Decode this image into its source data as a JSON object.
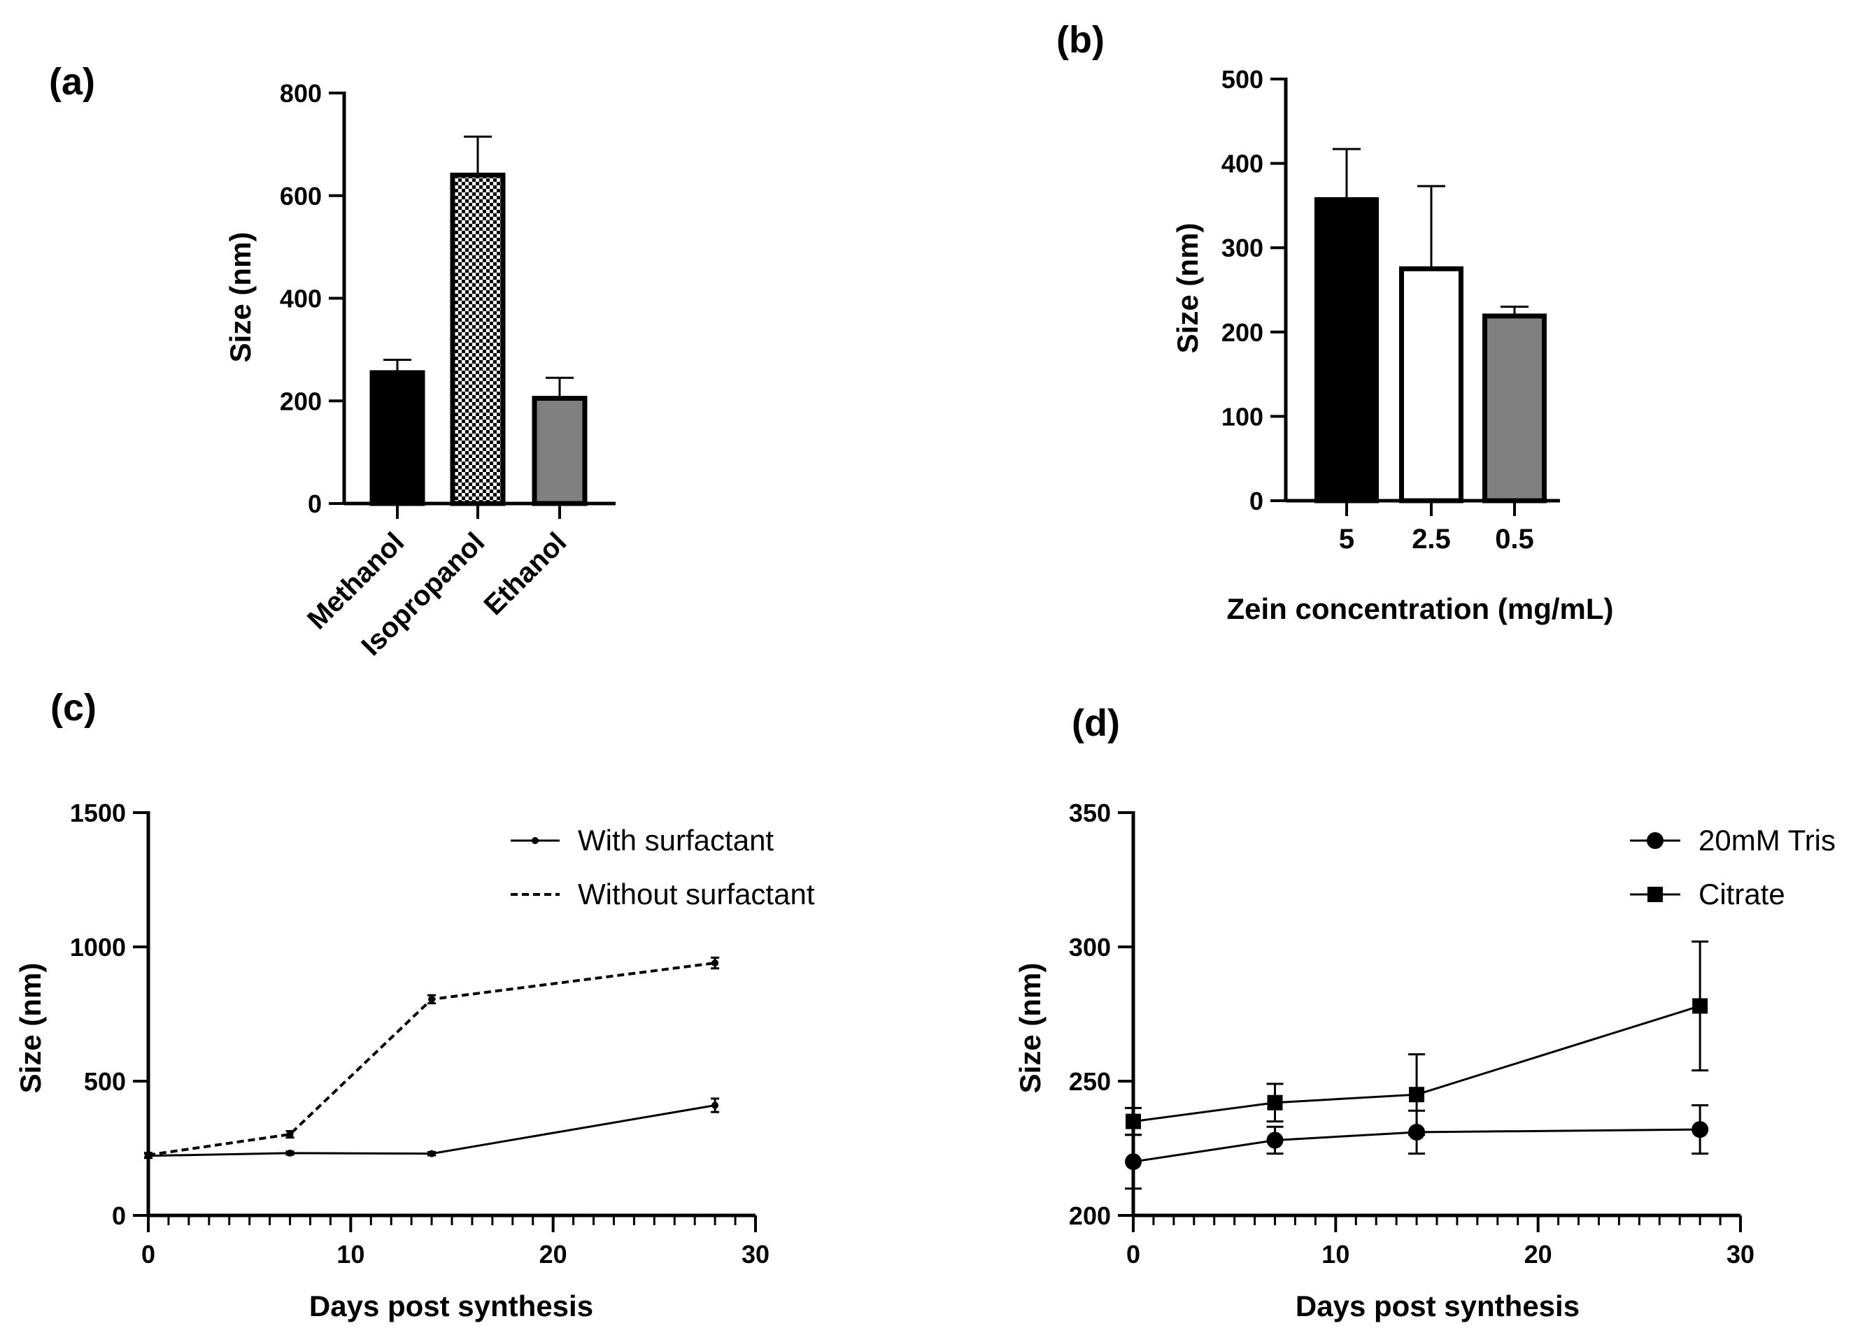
{
  "chart_data": [
    {
      "panel": "(a)",
      "type": "bar",
      "categories": [
        "Methanol",
        "Isopropanol",
        "Ethanol"
      ],
      "values": [
        255,
        640,
        205
      ],
      "errors": [
        25,
        75,
        40
      ],
      "fills": [
        "black",
        "checker",
        "#808080"
      ],
      "xlabel": "",
      "ylabel": "Size (nm)",
      "ylim": [
        0,
        800
      ],
      "yticks": [
        "0",
        "200",
        "400",
        "600",
        "800"
      ]
    },
    {
      "panel": "(b)",
      "type": "bar",
      "categories": [
        "5",
        "2.5",
        "0.5"
      ],
      "values": [
        357,
        275,
        219
      ],
      "errors": [
        60,
        98,
        11
      ],
      "fills": [
        "#000000",
        "#ffffff",
        "#808080"
      ],
      "xlabel": "Zein concentration (mg/mL)",
      "ylabel": "Size (nm)",
      "ylim": [
        0,
        500
      ],
      "yticks": [
        "0",
        "100",
        "200",
        "300",
        "400",
        "500"
      ]
    },
    {
      "panel": "(c)",
      "type": "line",
      "x": [
        0,
        7,
        14,
        28
      ],
      "series": [
        {
          "name": "With surfactant",
          "values": [
            222,
            232,
            230,
            410
          ],
          "errors": [
            8,
            6,
            6,
            25
          ],
          "style": "solid",
          "marker": "dot"
        },
        {
          "name": "Without surfactant",
          "values": [
            225,
            302,
            805,
            940
          ],
          "errors": [
            8,
            12,
            15,
            20
          ],
          "style": "dashed",
          "marker": "dot"
        }
      ],
      "xlabel": "Days post synthesis",
      "ylabel": "Size (nm)",
      "xlim": [
        0,
        30
      ],
      "ylim": [
        0,
        1500
      ],
      "xticks": [
        "0",
        "10",
        "20",
        "30"
      ],
      "yticks": [
        "0",
        "500",
        "1000",
        "1500"
      ],
      "legend": "top-right"
    },
    {
      "panel": "(d)",
      "type": "line",
      "x": [
        0,
        7,
        14,
        28
      ],
      "series": [
        {
          "name": "20mM Tris",
          "values": [
            220,
            228,
            231,
            232
          ],
          "errors": [
            10,
            5,
            8,
            9
          ],
          "style": "solid",
          "marker": "circle"
        },
        {
          "name": "Citrate",
          "values": [
            235,
            242,
            245,
            278
          ],
          "errors": [
            5,
            7,
            15,
            24
          ],
          "style": "solid",
          "marker": "square"
        }
      ],
      "xlabel": "Days post synthesis",
      "ylabel": "Size (nm)",
      "xlim": [
        0,
        30
      ],
      "ylim": [
        200,
        350
      ],
      "xticks": [
        "0",
        "10",
        "20",
        "30"
      ],
      "yticks": [
        "200",
        "250",
        "300",
        "350"
      ],
      "legend": "top-right"
    }
  ]
}
